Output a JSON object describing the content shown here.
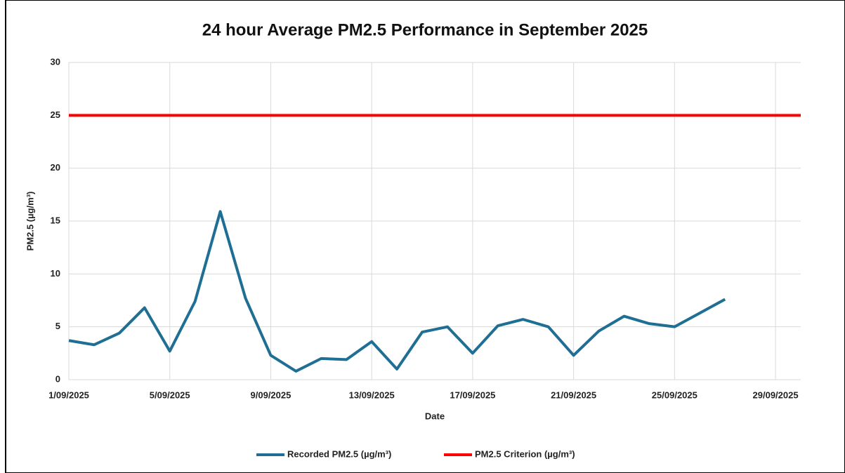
{
  "chart_data": {
    "type": "line",
    "title": "24 hour Average PM2.5 Performance in September 2025",
    "x_label": "Date",
    "y_label": "PM2.5 (µg/m³)",
    "xlim": [
      "1/09/2025",
      "30/09/2025"
    ],
    "xticks": [
      "1/09/2025",
      "5/09/2025",
      "9/09/2025",
      "13/09/2025",
      "17/09/2025",
      "21/09/2025",
      "25/09/2025",
      "29/09/2025"
    ],
    "ylim": [
      0,
      30
    ],
    "yticks": [
      0,
      5,
      10,
      15,
      20,
      25,
      30
    ],
    "grid": true,
    "legend": "bottom",
    "series": [
      {
        "name": "Recorded PM2.5 (µg/m³)",
        "color": "#1f6e94",
        "x": [
          "1/09/2025",
          "2/09/2025",
          "3/09/2025",
          "4/09/2025",
          "5/09/2025",
          "6/09/2025",
          "7/09/2025",
          "8/09/2025",
          "9/09/2025",
          "10/09/2025",
          "11/09/2025",
          "12/09/2025",
          "13/09/2025",
          "14/09/2025",
          "15/09/2025",
          "16/09/2025",
          "17/09/2025",
          "18/09/2025",
          "19/09/2025",
          "20/09/2025",
          "21/09/2025",
          "22/09/2025",
          "23/09/2025",
          "24/09/2025",
          "25/09/2025",
          "26/09/2025",
          "27/09/2025"
        ],
        "values": [
          3.7,
          3.3,
          4.4,
          6.8,
          2.7,
          7.4,
          15.9,
          7.7,
          2.3,
          0.8,
          2.0,
          1.9,
          3.6,
          1.0,
          4.5,
          5.0,
          2.5,
          5.1,
          5.7,
          5.0,
          2.3,
          4.6,
          6.0,
          5.3,
          5.0,
          6.3,
          7.6
        ]
      },
      {
        "name": "PM2.5 Criterion (µg/m³)",
        "color": "#ff0000",
        "x": [
          "1/09/2025",
          "30/09/2025"
        ],
        "values": [
          25,
          25
        ]
      }
    ]
  }
}
